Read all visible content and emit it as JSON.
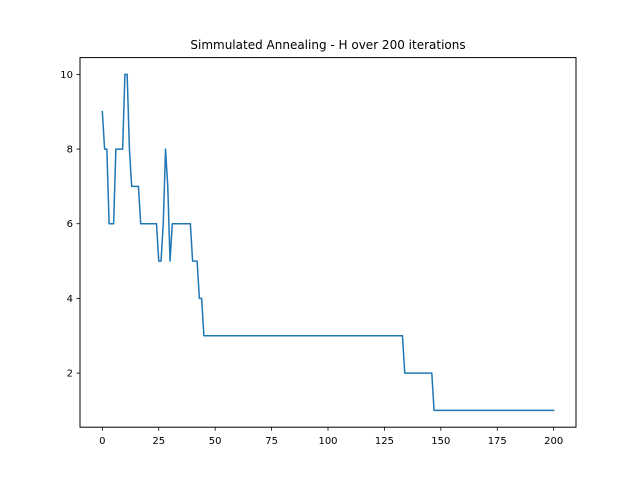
{
  "chart_data": {
    "type": "line",
    "title": "Simmulated Annealing - H over 200 iterations",
    "xlabel": "",
    "ylabel": "",
    "xlim": [
      -9.9,
      209.9
    ],
    "ylim": [
      0.55,
      10.45
    ],
    "xticks": [
      0,
      25,
      50,
      75,
      100,
      125,
      150,
      175,
      200
    ],
    "yticks": [
      2,
      4,
      6,
      8,
      10
    ],
    "grid": false,
    "legend": "none",
    "series": [
      {
        "color": "#1f77b4",
        "x": [
          0,
          1,
          2,
          3,
          4,
          5,
          6,
          7,
          8,
          9,
          10,
          11,
          12,
          13,
          14,
          15,
          16,
          17,
          18,
          19,
          20,
          21,
          22,
          23,
          24,
          25,
          26,
          27,
          28,
          29,
          30,
          31,
          32,
          33,
          34,
          35,
          36,
          37,
          38,
          39,
          40,
          41,
          42,
          43,
          44,
          45,
          46,
          47,
          133,
          134,
          146,
          147,
          200
        ],
        "y": [
          9,
          8,
          8,
          6,
          6,
          6,
          8,
          8,
          8,
          8,
          10,
          10,
          8,
          7,
          7,
          7,
          7,
          6,
          6,
          6,
          6,
          6,
          6,
          6,
          6,
          5,
          5,
          6,
          8,
          7,
          5,
          6,
          6,
          6,
          6,
          6,
          6,
          6,
          6,
          6,
          5,
          5,
          5,
          4,
          4,
          3,
          3,
          3,
          3,
          2,
          2,
          1,
          1
        ]
      }
    ]
  }
}
